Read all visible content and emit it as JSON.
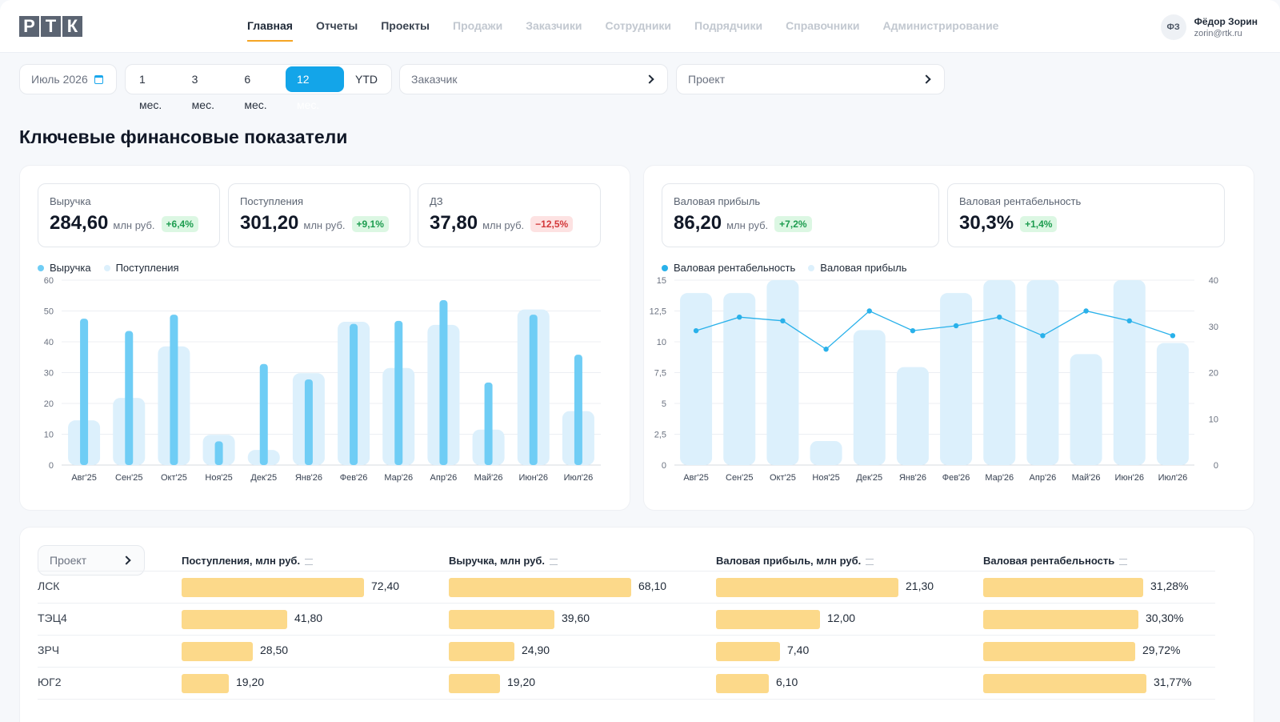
{
  "header": {
    "logo": [
      "Р",
      "Т",
      "К"
    ],
    "nav": [
      {
        "label": "Главная",
        "state": "active"
      },
      {
        "label": "Отчеты",
        "state": "normal"
      },
      {
        "label": "Проекты",
        "state": "normal"
      },
      {
        "label": "Продажи",
        "state": "disabled"
      },
      {
        "label": "Заказчики",
        "state": "disabled"
      },
      {
        "label": "Сотрудники",
        "state": "disabled"
      },
      {
        "label": "Подрядчики",
        "state": "disabled"
      },
      {
        "label": "Справочники",
        "state": "disabled"
      },
      {
        "label": "Администрирование",
        "state": "disabled"
      }
    ],
    "user": {
      "initials": "ФЗ",
      "name": "Фёдор Зорин",
      "email": "zorin@rtk.ru"
    }
  },
  "filters": {
    "date": "Июль 2026",
    "periods": [
      "1 мес.",
      "3 мес.",
      "6 мес.",
      "12 мес.",
      "YTD"
    ],
    "active_period": "12 мес.",
    "customer_placeholder": "Заказчик",
    "project_placeholder": "Проект"
  },
  "page_title": "Ключевые финансовые показатели",
  "kpis_left": [
    {
      "label": "Выручка",
      "value": "284,60",
      "unit": "млн руб.",
      "change": "+6,4%",
      "trend": "pos"
    },
    {
      "label": "Поступления",
      "value": "301,20",
      "unit": "млн руб.",
      "change": "+9,1%",
      "trend": "pos"
    },
    {
      "label": "ДЗ",
      "value": "37,80",
      "unit": "млн руб.",
      "change": "−12,5%",
      "trend": "neg"
    }
  ],
  "kpis_right": [
    {
      "label": "Валовая прибыль",
      "value": "86,20",
      "unit": "млн руб.",
      "change": "+7,2%",
      "trend": "pos"
    },
    {
      "label": "Валовая рентабельность",
      "value": "30,3%",
      "unit": "",
      "change": "+1,4%",
      "trend": "pos"
    }
  ],
  "colors": {
    "accent": "#13a5e9",
    "bar_primary": "#6fcdf5",
    "bar_secondary": "#dcf0fc",
    "line": "#29b1ea",
    "table_bar": "#fcd98a",
    "nav_underline": "#f5a524"
  },
  "chart_data": [
    {
      "type": "bar",
      "categories": [
        "Авг'25",
        "Сен'25",
        "Окт'25",
        "Ноя'25",
        "Дек'25",
        "Янв'26",
        "Фев'26",
        "Мар'26",
        "Апр'26",
        "Май'26",
        "Июн'26",
        "Июл'26"
      ],
      "series": [
        {
          "name": "Выручка",
          "values": [
            47.5,
            43.5,
            48.8,
            7.7,
            32.8,
            27.8,
            45.8,
            46.8,
            53.5,
            26.8,
            48.8,
            35.8
          ],
          "color": "#6fcdf5"
        },
        {
          "name": "Поступления",
          "values": [
            14.5,
            21.8,
            38.5,
            9.8,
            4.9,
            29.8,
            46.5,
            31.5,
            45.5,
            11.5,
            50.5,
            17.5
          ],
          "color": "#dcf0fc"
        }
      ],
      "yticks": [
        "0",
        "10",
        "20",
        "30",
        "40",
        "50",
        "60"
      ],
      "ylim": [
        0,
        60
      ],
      "grid": true,
      "legend": "top-left"
    },
    {
      "type": "bar",
      "categories": [
        "Авг'25",
        "Сен'25",
        "Окт'25",
        "Ноя'25",
        "Дек'25",
        "Янв'26",
        "Фев'26",
        "Мар'26",
        "Апр'26",
        "Май'26",
        "Июн'26",
        "Июл'26"
      ],
      "series": [
        {
          "name": "Валовая рентабельность",
          "type": "line",
          "axis": "left",
          "values": [
            10.9,
            12.0,
            11.7,
            9.4,
            12.5,
            10.9,
            11.3,
            12.0,
            10.5,
            12.5,
            11.7,
            10.5
          ],
          "color": "#29b1ea"
        },
        {
          "name": "Валовая прибыль",
          "type": "bar",
          "axis": "right",
          "values": [
            37.2,
            37.2,
            40.0,
            5.2,
            29.2,
            21.2,
            37.2,
            40.0,
            40.0,
            24.0,
            40.0,
            26.4
          ],
          "color": "#dcf0fc"
        }
      ],
      "yticks_left": [
        "0",
        "2,5",
        "5",
        "7,5",
        "10",
        "12,5",
        "15"
      ],
      "yticks_right": [
        "0",
        "10",
        "20",
        "30",
        "40"
      ],
      "ylim_left": [
        0,
        15
      ],
      "ylim_right": [
        0,
        40
      ],
      "grid": true,
      "legend": "top-left"
    }
  ],
  "table": {
    "project_filter": "Проект",
    "columns": [
      "Поступления, млн руб.",
      "Выручка, млн руб.",
      "Валовая прибыль, млн руб.",
      "Валовая рентабельность"
    ],
    "rows": [
      {
        "name": "ЛСК",
        "values": [
          "72,40",
          "68,10",
          "21,30",
          "31,28%"
        ],
        "fractions": [
          1.0,
          1.0,
          1.0,
          1.0
        ]
      },
      {
        "name": "ТЭЦ4",
        "values": [
          "41,80",
          "39,60",
          "12,00",
          "30,30%"
        ],
        "fractions": [
          0.58,
          0.58,
          0.57,
          0.97
        ]
      },
      {
        "name": "ЗРЧ",
        "values": [
          "28,50",
          "24,90",
          "7,40",
          "29,72%"
        ],
        "fractions": [
          0.39,
          0.36,
          0.35,
          0.95
        ]
      },
      {
        "name": "ЮГ2",
        "values": [
          "19,20",
          "19,20",
          "6,10",
          "31,77%"
        ],
        "fractions": [
          0.26,
          0.28,
          0.29,
          1.02
        ]
      }
    ]
  }
}
